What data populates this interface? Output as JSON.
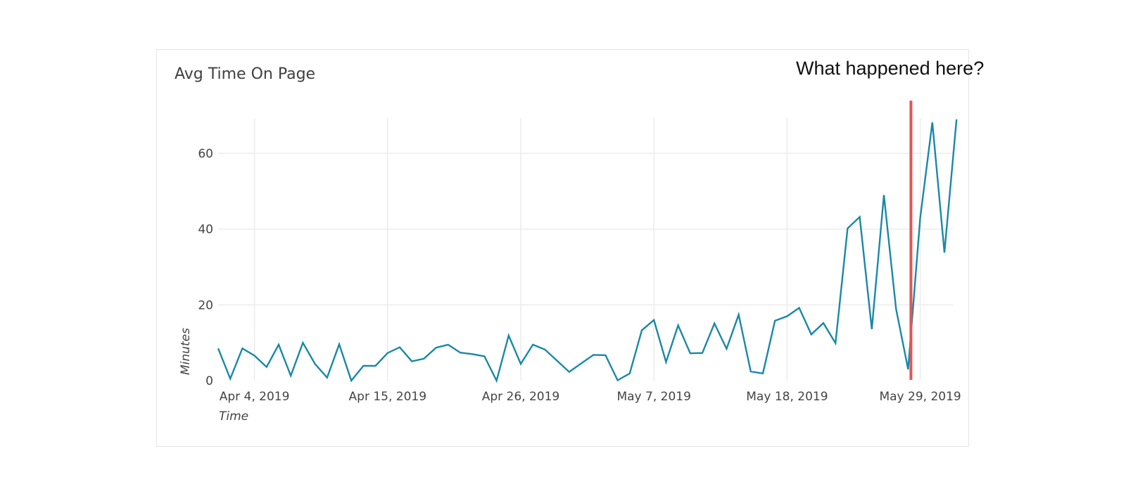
{
  "annotation": {
    "text": "What happened here?"
  },
  "colors": {
    "line": "#1a88a8",
    "marker": "#e05656",
    "grid": "#ececec",
    "text": "#444444"
  },
  "chart_data": {
    "type": "line",
    "title": "Avg Time On Page",
    "xlabel": "Time",
    "ylabel": "Minutes",
    "x_start": "2019-04-01",
    "x_ticks": [
      "Apr 4, 2019",
      "Apr 15, 2019",
      "Apr 26, 2019",
      "May 7, 2019",
      "May 18, 2019",
      "May 29, 2019"
    ],
    "x_tick_dates": [
      "2019-04-04",
      "2019-04-15",
      "2019-04-26",
      "2019-05-07",
      "2019-05-18",
      "2019-05-29"
    ],
    "y_ticks": [
      0,
      20,
      40,
      60
    ],
    "ylim": [
      0,
      69
    ],
    "grid": true,
    "series": [
      {
        "name": "",
        "x": [
          "2019-04-01",
          "2019-04-02",
          "2019-04-03",
          "2019-04-04",
          "2019-04-05",
          "2019-04-06",
          "2019-04-07",
          "2019-04-08",
          "2019-04-09",
          "2019-04-10",
          "2019-04-11",
          "2019-04-12",
          "2019-04-13",
          "2019-04-14",
          "2019-04-15",
          "2019-04-16",
          "2019-04-17",
          "2019-04-18",
          "2019-04-19",
          "2019-04-20",
          "2019-04-21",
          "2019-04-22",
          "2019-04-23",
          "2019-04-24",
          "2019-04-25",
          "2019-04-26",
          "2019-04-27",
          "2019-04-28",
          "2019-04-30",
          "2019-05-02",
          "2019-05-03",
          "2019-05-04",
          "2019-05-05",
          "2019-05-06",
          "2019-05-07",
          "2019-05-08",
          "2019-05-09",
          "2019-05-10",
          "2019-05-11",
          "2019-05-12",
          "2019-05-13",
          "2019-05-14",
          "2019-05-15",
          "2019-05-16",
          "2019-05-17",
          "2019-05-18",
          "2019-05-19",
          "2019-05-20",
          "2019-05-21",
          "2019-05-22",
          "2019-05-23",
          "2019-05-24",
          "2019-05-25",
          "2019-05-26",
          "2019-05-27",
          "2019-05-28",
          "2019-05-29",
          "2019-05-30",
          "2019-05-31",
          "2019-06-01"
        ],
        "values": [
          8.5,
          0.5,
          8.5,
          6.6,
          3.6,
          9.5,
          1.3,
          10,
          4.4,
          0.8,
          9.6,
          0,
          3.9,
          3.9,
          7.3,
          8.8,
          5.1,
          5.8,
          8.7,
          9.5,
          7.4,
          7,
          6.4,
          0,
          11.9,
          4.4,
          9.5,
          8.2,
          2.3,
          6.8,
          6.7,
          0.1,
          1.9,
          13.3,
          16,
          4.9,
          14.6,
          7.2,
          7.3,
          15.1,
          8.4,
          17.4,
          2.4,
          1.9,
          15.8,
          17,
          19.2,
          12.2,
          15.2,
          9.9,
          40.2,
          43.2,
          13.6,
          49,
          19,
          3,
          43,
          68.2,
          33.8,
          69
        ]
      }
    ],
    "marker_date": "2019-05-28"
  }
}
